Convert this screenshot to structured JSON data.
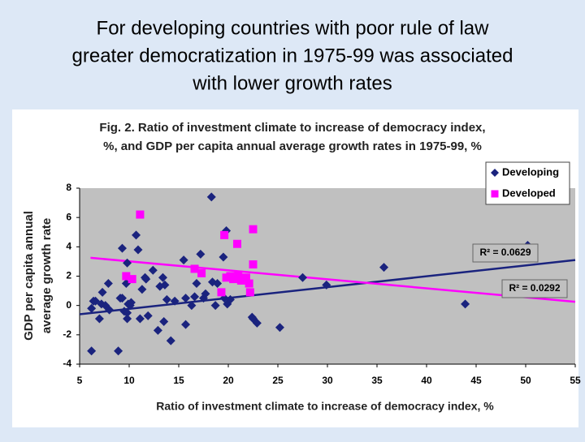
{
  "slide": {
    "title": [
      "For developing countries with poor rule of law",
      "greater democratization in 1975-99 was associated",
      "with lower growth rates"
    ]
  },
  "chart_data": {
    "type": "scatter",
    "title": [
      "Fig. 2. Ratio of investment climate to increase of democracy index,",
      "%, and GDP per capita annual average growth rates in 1975-99, %"
    ],
    "xlabel": "Ratio of investment climate to increase of democracy index, %",
    "ylabel": [
      "GDP per capita annual",
      "average growth rate"
    ],
    "xlim": [
      5,
      55
    ],
    "ylim": [
      -4,
      8
    ],
    "xticks": [
      5,
      10,
      15,
      20,
      25,
      30,
      35,
      40,
      45,
      50,
      55
    ],
    "yticks": [
      -4,
      -2,
      0,
      2,
      4,
      6,
      8
    ],
    "grid": false,
    "legend": "top-right",
    "plot_background": "#c0c0c0",
    "series": [
      {
        "name": "Developing",
        "color": "#1a237e",
        "marker": "diamond",
        "x": [
          6.4,
          6.2,
          6.6,
          7.0,
          7.2,
          7.3,
          7.6,
          7.9,
          8.0,
          8.9,
          6.2,
          9.1,
          9.3,
          9.3,
          9.5,
          9.7,
          9.8,
          9.8,
          9.9,
          9.8,
          10.1,
          10.2,
          10.7,
          10.9,
          11.1,
          11.3,
          11.6,
          11.7,
          11.9,
          12.4,
          12.9,
          13.1,
          13.4,
          13.6,
          13.8,
          13.5,
          14.2,
          14.6,
          15.5,
          15.7,
          15.7,
          16.3,
          16.6,
          16.8,
          17.2,
          17.5,
          17.7,
          18.3,
          18.4,
          18.7,
          18.9,
          19.5,
          19.6,
          19.8,
          19.9,
          20.2,
          22.4,
          22.5,
          22.9,
          25.2,
          27.5,
          29.9,
          35.7,
          43.9,
          50.2
        ],
        "values": [
          0.3,
          -0.2,
          0.3,
          -0.9,
          0.1,
          0.9,
          0.0,
          1.5,
          -0.3,
          -3.1,
          -3.1,
          0.5,
          3.9,
          0.5,
          -0.4,
          1.5,
          -0.9,
          -0.5,
          0.1,
          2.9,
          0.0,
          0.2,
          4.8,
          3.8,
          -0.9,
          1.1,
          1.9,
          1.8,
          -0.7,
          2.4,
          -1.7,
          1.3,
          1.9,
          1.4,
          0.4,
          -1.1,
          -2.4,
          0.3,
          3.1,
          0.5,
          -1.3,
          0.0,
          0.6,
          1.5,
          3.5,
          0.5,
          0.8,
          7.4,
          1.6,
          0.0,
          1.5,
          3.3,
          0.5,
          5.1,
          0.1,
          0.4,
          -0.8,
          -0.9,
          -1.2,
          -1.5,
          1.9,
          1.4,
          2.6,
          0.1,
          4.1
        ],
        "trendline": {
          "x": [
            5,
            55
          ],
          "values": [
            -0.6,
            3.1
          ],
          "label": "R² = 0.0629"
        }
      },
      {
        "name": "Developed",
        "color": "#ff00ff",
        "marker": "square",
        "x": [
          11.1,
          9.7,
          10.3,
          16.6,
          17.3,
          19.6,
          20.9,
          22.5,
          22.5,
          22.2,
          19.3,
          19.8,
          20.2,
          20.5,
          21.0,
          21.3,
          21.8,
          22.1
        ],
        "values": [
          6.2,
          2.0,
          1.8,
          2.5,
          2.2,
          4.8,
          4.2,
          5.2,
          2.8,
          0.9,
          0.9,
          1.9,
          2.0,
          1.8,
          2.1,
          1.7,
          1.9,
          1.5
        ],
        "trendline": {
          "x": [
            6.1,
            55
          ],
          "values": [
            3.25,
            0.25
          ],
          "label": "R² = 0.0292"
        }
      }
    ]
  }
}
